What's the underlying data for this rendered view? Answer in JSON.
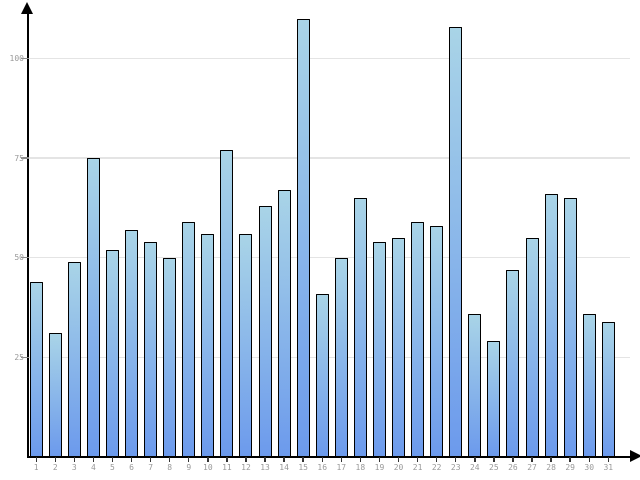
{
  "chart_data": {
    "type": "bar",
    "title": "",
    "xlabel": "",
    "ylabel": "",
    "categories": [
      "1",
      "2",
      "3",
      "4",
      "5",
      "6",
      "7",
      "8",
      "9",
      "10",
      "11",
      "12",
      "13",
      "14",
      "15",
      "16",
      "17",
      "18",
      "19",
      "20",
      "21",
      "22",
      "23",
      "24",
      "25",
      "26",
      "27",
      "28",
      "29",
      "30",
      "31"
    ],
    "values": [
      44,
      31,
      49,
      75,
      52,
      57,
      54,
      50,
      59,
      56,
      77,
      56,
      63,
      67,
      110,
      41,
      50,
      65,
      54,
      55,
      59,
      58,
      108,
      36,
      29,
      47,
      55,
      66,
      65,
      36,
      34
    ],
    "yticks": [
      25,
      50,
      75,
      100
    ],
    "ylim": [
      0,
      113
    ],
    "grid": true,
    "legend": "none",
    "colors": {
      "bar_gradient_top": "#a9d4e7",
      "bar_gradient_bottom": "#6c9aec",
      "bar_border": "#000000",
      "gridline": "#e4e4e4",
      "axis": "#000000",
      "tick_mark_y": "#8a8a8a",
      "tick_mark_x": "#333333",
      "tick_label": "#999999",
      "background": "#ffffff"
    }
  }
}
